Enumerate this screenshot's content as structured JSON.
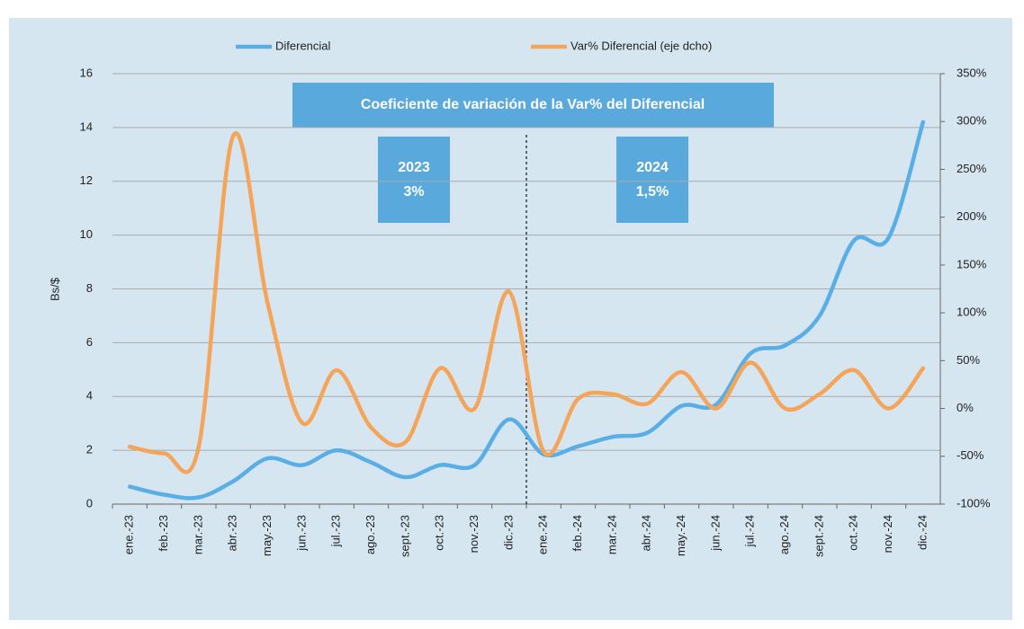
{
  "chart_data": {
    "type": "line",
    "y_label": "Bs/$",
    "categories": [
      "ene.-23",
      "feb.-23",
      "mar.-23",
      "abr.-23",
      "may.-23",
      "jun.-23",
      "jul.-23",
      "ago.-23",
      "sept.-23",
      "oct.-23",
      "nov.-23",
      "dic.-23",
      "ene.-24",
      "feb.-24",
      "mar.-24",
      "abr.-24",
      "may.-24",
      "jun.-24",
      "jul.-24",
      "ago.-24",
      "sept.-24",
      "oct.-24",
      "nov.-24",
      "dic.-24"
    ],
    "series": [
      {
        "name": "Diferencial",
        "color": "#5aaee6",
        "values": [
          0.65,
          0.35,
          0.25,
          0.85,
          1.7,
          1.45,
          2.0,
          1.55,
          1.0,
          1.45,
          1.45,
          3.15,
          1.85,
          2.15,
          2.5,
          2.65,
          3.65,
          3.7,
          5.6,
          5.9,
          7.0,
          9.8,
          9.9,
          14.2
        ]
      },
      {
        "name": "Var% Diferencial (eje dcho)",
        "color": "#f5a55a",
        "axis": "y2",
        "values": [
          -40,
          -47,
          -40,
          285,
          110,
          -15,
          40,
          -20,
          -35,
          42,
          0,
          122,
          -45,
          10,
          15,
          5,
          38,
          0,
          48,
          0,
          15,
          40,
          0,
          42
        ]
      }
    ],
    "ylim": [
      0,
      16
    ],
    "yticks": [
      0,
      2,
      4,
      6,
      8,
      10,
      12,
      14,
      16
    ],
    "y2lim": [
      -100,
      350
    ],
    "y2ticks": [
      {
        "value": -100,
        "label": "-100%"
      },
      {
        "value": -50,
        "label": "-50%"
      },
      {
        "value": 0,
        "label": "0%"
      },
      {
        "value": 50,
        "label": "50%"
      },
      {
        "value": 100,
        "label": "100%"
      },
      {
        "value": 150,
        "label": "150%"
      },
      {
        "value": 200,
        "label": "200%"
      },
      {
        "value": 250,
        "label": "250%"
      },
      {
        "value": 300,
        "label": "300%"
      },
      {
        "value": 350,
        "label": "350%"
      }
    ],
    "grid": true,
    "legend": "top",
    "annotations": [
      "Coeficiente de variación de la Var% del Diferencial",
      "2023",
      "3%",
      "2024",
      "1,5%"
    ]
  }
}
